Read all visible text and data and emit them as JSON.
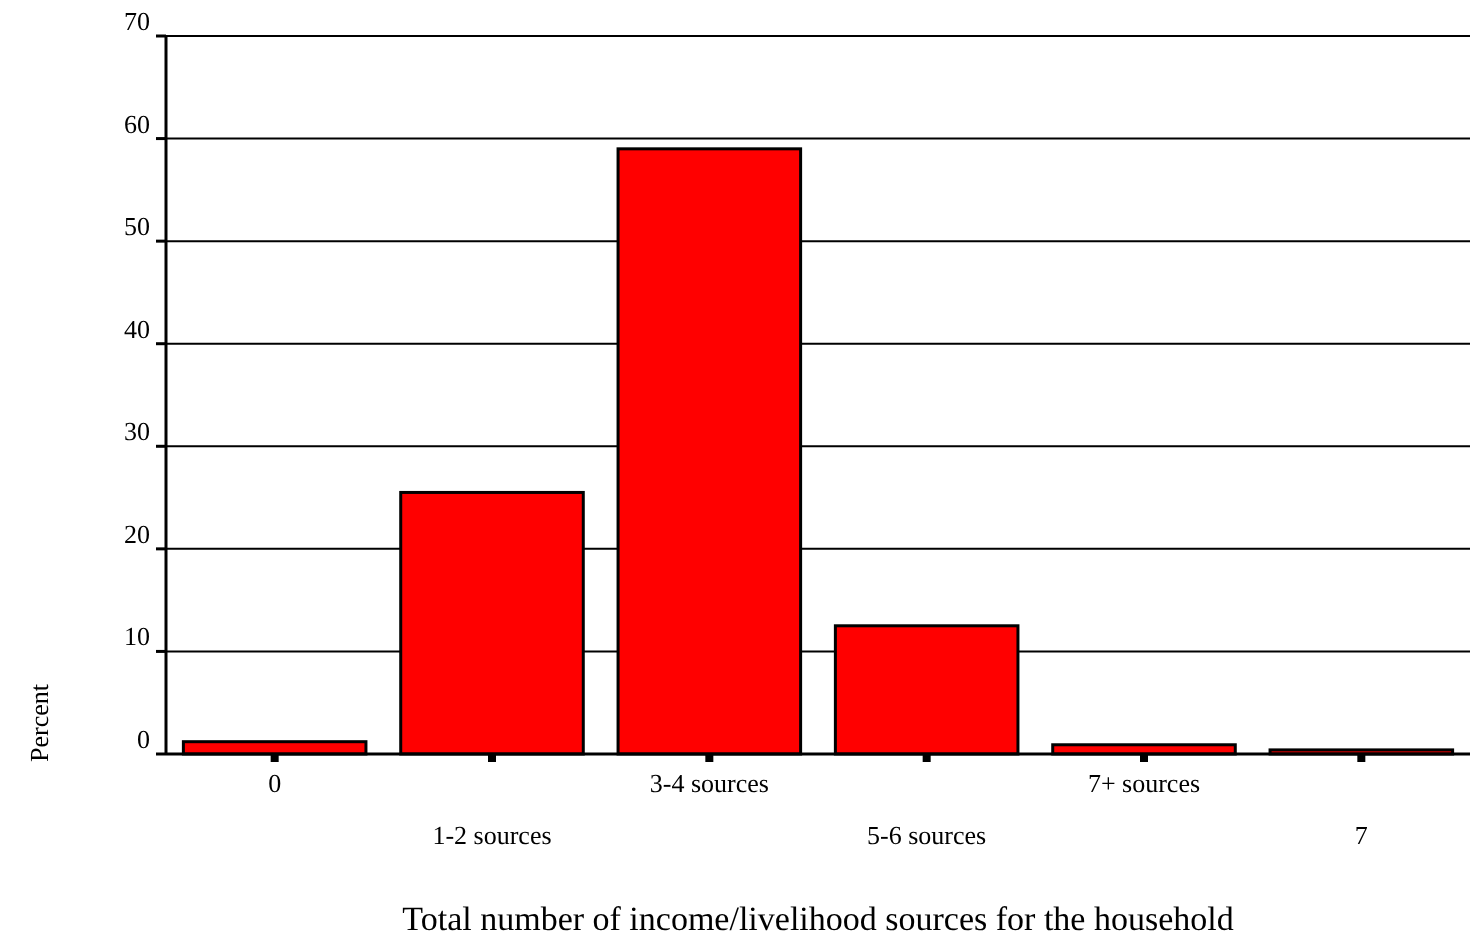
{
  "chart_data": {
    "type": "bar",
    "xlabel": "Total number of income/livelihood sources for the household",
    "ylabel": "Percent",
    "categories": [
      "0",
      "1-2 sources",
      "3-4 sources",
      "5-6 sources",
      "7+ sources",
      "7"
    ],
    "values": [
      1.2,
      25.5,
      59,
      12.5,
      0.9,
      0.4
    ],
    "color": "#ff0000",
    "ylim": [
      0,
      70
    ],
    "yticks": [
      0,
      10,
      20,
      30,
      40,
      50,
      60,
      70
    ],
    "grid": "y"
  }
}
